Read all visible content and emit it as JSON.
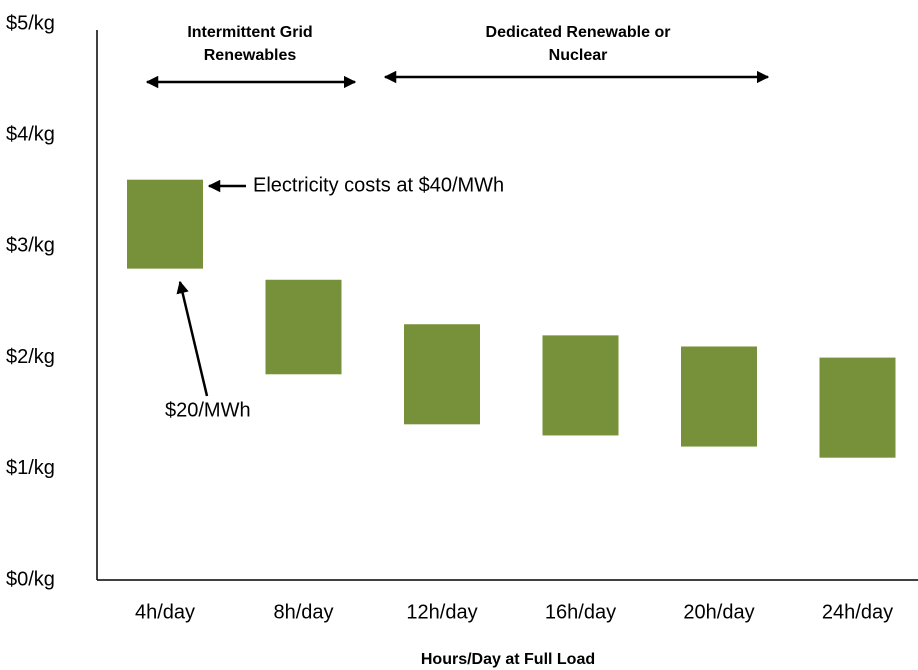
{
  "chart_data": {
    "type": "range_bar",
    "categories": [
      "4h/day",
      "8h/day",
      "12h/day",
      "16h/day",
      "20h/day",
      "24h/day"
    ],
    "low": [
      2.8,
      1.85,
      1.4,
      1.3,
      1.2,
      1.1
    ],
    "high": [
      3.6,
      2.7,
      2.3,
      2.2,
      2.1,
      2.0
    ],
    "color": "#77903a",
    "ylim": [
      0,
      5
    ],
    "yticks": [
      {
        "value": 0,
        "label": "$0/kg"
      },
      {
        "value": 1,
        "label": "$1/kg"
      },
      {
        "value": 2,
        "label": "$2/kg"
      },
      {
        "value": 3,
        "label": "$3/kg"
      },
      {
        "value": 4,
        "label": "$4/kg"
      },
      {
        "value": 5,
        "label": "$5/kg"
      }
    ],
    "grid": false,
    "x_label": "Hours/Day at Full Load",
    "group_labels": [
      {
        "lines": [
          "Intermittent Grid",
          "Renewables"
        ]
      },
      {
        "lines": [
          "Dedicated Renewable or",
          "Nuclear"
        ]
      }
    ],
    "annotations": [
      "Electricity costs at $40/MWh",
      "$20/MWh"
    ]
  }
}
